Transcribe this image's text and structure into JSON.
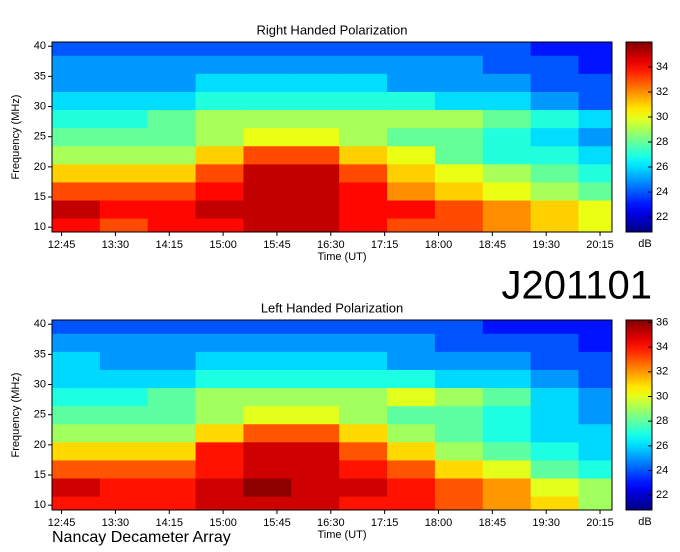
{
  "chart_data": [
    {
      "type": "heatmap",
      "title": "Right Handed Polarization",
      "xlabel": "Time (UT)",
      "ylabel": "Frequency (MHz)",
      "colorbar_label": "dB",
      "colormap": "jet",
      "x": [
        777,
        817,
        857,
        897,
        937,
        977,
        1017,
        1057,
        1097,
        1137,
        1177,
        1217
      ],
      "y": [
        10,
        13,
        16,
        19,
        22,
        25,
        28,
        31,
        34,
        37,
        40
      ],
      "z": [
        [
          34,
          33,
          34,
          34,
          35,
          35,
          34,
          33,
          33,
          32,
          31,
          30
        ],
        [
          35,
          34,
          34,
          35,
          35,
          35,
          34,
          34,
          33,
          32,
          31,
          30
        ],
        [
          33,
          33,
          33,
          34,
          35,
          35,
          34,
          32,
          31,
          30,
          29,
          28
        ],
        [
          31,
          31,
          31,
          33,
          35,
          35,
          33,
          31,
          30,
          29,
          28,
          27
        ],
        [
          29,
          29,
          29,
          31,
          33,
          33,
          31,
          30,
          28,
          27,
          27,
          26
        ],
        [
          28,
          28,
          28,
          29,
          30,
          30,
          29,
          28,
          28,
          27,
          26,
          25
        ],
        [
          27,
          27,
          28,
          29,
          29,
          29,
          29,
          29,
          29,
          28,
          27,
          26
        ],
        [
          26,
          26,
          26,
          27,
          27,
          27,
          27,
          27,
          26,
          26,
          25,
          24
        ],
        [
          25,
          25,
          25,
          26,
          26,
          26,
          26,
          25,
          25,
          25,
          24,
          24
        ],
        [
          25,
          25,
          25,
          25,
          25,
          25,
          25,
          25,
          25,
          24,
          24,
          23
        ],
        [
          24,
          24,
          24,
          24,
          24,
          24,
          24,
          24,
          24,
          24,
          23,
          23
        ]
      ],
      "xlim": [
        757,
        1225
      ],
      "ylim": [
        9.2,
        40.7
      ],
      "clim": [
        20.8,
        36
      ],
      "xticks": [
        {
          "value": 765,
          "label": "12:45"
        },
        {
          "value": 810,
          "label": "13:30"
        },
        {
          "value": 855,
          "label": "14:15"
        },
        {
          "value": 900,
          "label": "15:00"
        },
        {
          "value": 945,
          "label": "15:45"
        },
        {
          "value": 990,
          "label": "16:30"
        },
        {
          "value": 1035,
          "label": "17:15"
        },
        {
          "value": 1080,
          "label": "18:00"
        },
        {
          "value": 1125,
          "label": "18:45"
        },
        {
          "value": 1170,
          "label": "19:30"
        },
        {
          "value": 1215,
          "label": "20:15"
        }
      ],
      "yticks": [
        10,
        15,
        20,
        25,
        30,
        35,
        40
      ],
      "cticks": [
        22,
        24,
        26,
        28,
        30,
        32,
        34
      ]
    },
    {
      "type": "heatmap",
      "title": "Left Handed Polarization",
      "xlabel": "Time (UT)",
      "ylabel": "Frequency (MHz)",
      "colorbar_label": "dB",
      "colormap": "jet",
      "x": [
        777,
        817,
        857,
        897,
        937,
        977,
        1017,
        1057,
        1097,
        1137,
        1177,
        1217
      ],
      "y": [
        10,
        13,
        16,
        19,
        22,
        25,
        28,
        31,
        34,
        37,
        40
      ],
      "z": [
        [
          34,
          34,
          34,
          35,
          35,
          35,
          34,
          34,
          33,
          32,
          31,
          29
        ],
        [
          35,
          34,
          34,
          35,
          36,
          35,
          35,
          34,
          33,
          32,
          30,
          29
        ],
        [
          33,
          33,
          33,
          34,
          35,
          35,
          34,
          33,
          31,
          30,
          28,
          27
        ],
        [
          31,
          31,
          31,
          34,
          35,
          35,
          33,
          31,
          29,
          28,
          27,
          26
        ],
        [
          29,
          29,
          29,
          31,
          33,
          33,
          31,
          29,
          28,
          27,
          26,
          26
        ],
        [
          28,
          28,
          28,
          29,
          30,
          30,
          29,
          28,
          28,
          27,
          26,
          25
        ],
        [
          27,
          27,
          28,
          29,
          29,
          29,
          29,
          30,
          29,
          28,
          26,
          25
        ],
        [
          26,
          26,
          26,
          27,
          27,
          27,
          27,
          27,
          26,
          26,
          25,
          24
        ],
        [
          26,
          25,
          25,
          26,
          26,
          26,
          26,
          25,
          25,
          25,
          24,
          24
        ],
        [
          25,
          25,
          25,
          25,
          25,
          25,
          25,
          25,
          24,
          24,
          24,
          23
        ],
        [
          24,
          24,
          24,
          24,
          24,
          24,
          24,
          24,
          24,
          23,
          23,
          23
        ]
      ],
      "xlim": [
        757,
        1225
      ],
      "ylim": [
        9.2,
        40.7
      ],
      "clim": [
        20.8,
        36.2
      ],
      "xticks": [
        {
          "value": 765,
          "label": "12:45"
        },
        {
          "value": 810,
          "label": "13:30"
        },
        {
          "value": 855,
          "label": "14:15"
        },
        {
          "value": 900,
          "label": "15:00"
        },
        {
          "value": 945,
          "label": "15:45"
        },
        {
          "value": 990,
          "label": "16:30"
        },
        {
          "value": 1035,
          "label": "17:15"
        },
        {
          "value": 1080,
          "label": "18:00"
        },
        {
          "value": 1125,
          "label": "18:45"
        },
        {
          "value": 1170,
          "label": "19:30"
        },
        {
          "value": 1215,
          "label": "20:15"
        }
      ],
      "yticks": [
        10,
        15,
        20,
        25,
        30,
        35,
        40
      ],
      "cticks": [
        22,
        24,
        26,
        28,
        30,
        32,
        34,
        36
      ]
    }
  ],
  "observation_id": "J201101",
  "instrument": "Nancay Decameter Array"
}
